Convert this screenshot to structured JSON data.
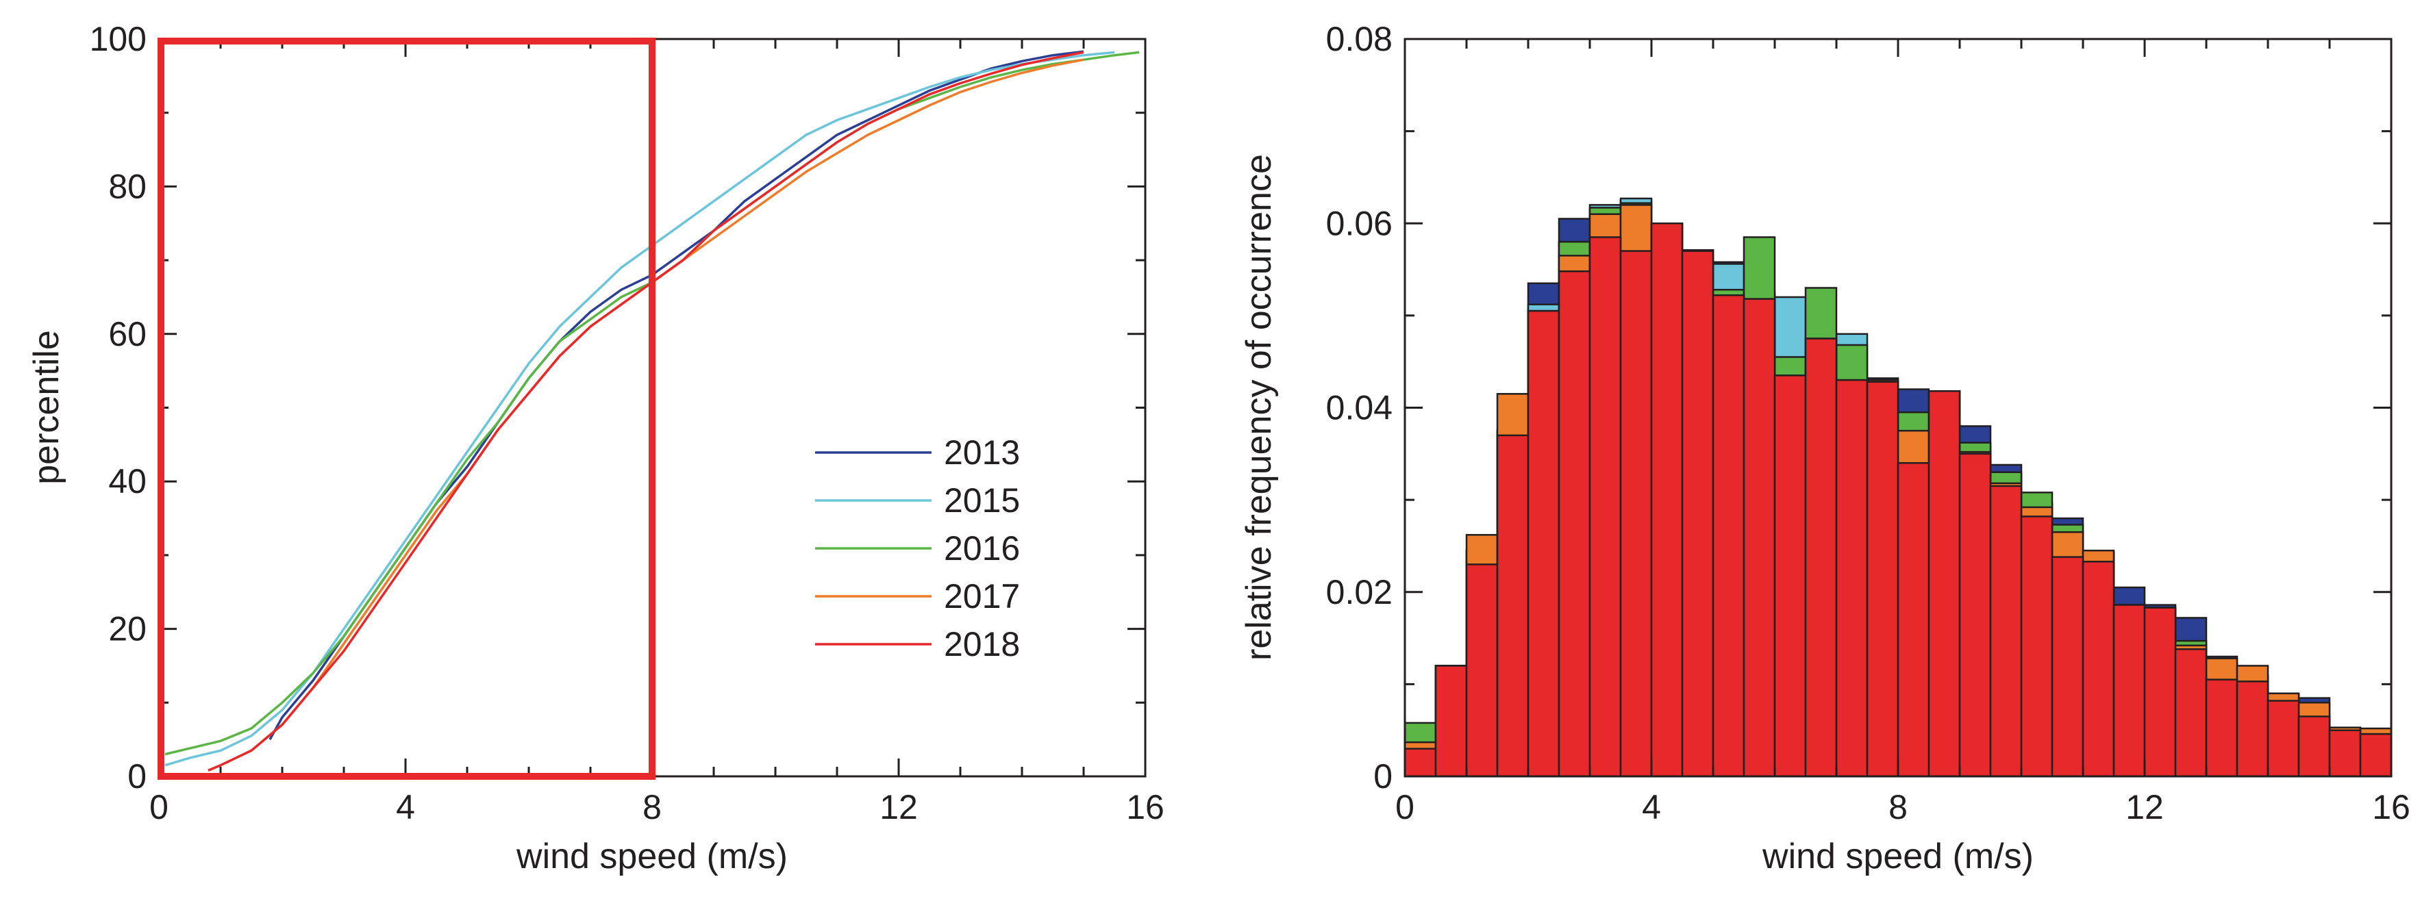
{
  "chart_data": [
    {
      "type": "line",
      "title": "",
      "xlabel": "wind speed (m/s)",
      "ylabel": "percentile",
      "xlim": [
        0,
        16
      ],
      "ylim": [
        0,
        100
      ],
      "xticks": [
        "0",
        "4",
        "8",
        "12",
        "16"
      ],
      "yticks": [
        "0",
        "20",
        "40",
        "60",
        "80",
        "100"
      ],
      "grid": false,
      "legend_position": "lower-right",
      "highlight_box": {
        "x": [
          0,
          8
        ],
        "y": [
          0,
          100
        ],
        "color": "#e8292b"
      },
      "series": [
        {
          "name": "2013",
          "color": "#2b3f94",
          "x": [
            1.8,
            2.0,
            2.5,
            3.0,
            3.5,
            4.0,
            4.5,
            5.0,
            5.5,
            6.0,
            6.5,
            7.0,
            7.5,
            8.0,
            8.5,
            9.0,
            9.5,
            10.0,
            10.5,
            11.0,
            11.5,
            12.0,
            12.5,
            13.0,
            13.5,
            14.0,
            14.5,
            15.0
          ],
          "y": [
            5,
            8,
            13,
            19,
            25,
            31,
            37,
            42,
            48,
            54,
            59,
            63,
            66,
            68,
            71,
            74,
            78,
            81,
            84,
            87,
            89,
            91,
            93,
            94.5,
            96,
            97,
            97.8,
            98.3
          ]
        },
        {
          "name": "2015",
          "color": "#6cc5db",
          "x": [
            0.1,
            0.5,
            1.0,
            1.5,
            2.0,
            2.5,
            3.0,
            3.5,
            4.0,
            4.5,
            5.0,
            5.5,
            6.0,
            6.5,
            7.0,
            7.5,
            8.0,
            8.5,
            9.0,
            9.5,
            10.0,
            10.5,
            11.0,
            11.5,
            12.0,
            12.5,
            13.0,
            13.5,
            14.0,
            14.5,
            15.0,
            15.5
          ],
          "y": [
            1.5,
            2.5,
            3.5,
            5.5,
            9,
            14,
            20,
            26,
            32,
            38,
            44,
            50,
            56,
            61,
            65,
            69,
            72,
            75,
            78,
            81,
            84,
            87,
            89,
            90.5,
            92,
            93.5,
            94.8,
            95.8,
            96.6,
            97.2,
            97.8,
            98.2
          ]
        },
        {
          "name": "2016",
          "color": "#5bb646",
          "x": [
            0.1,
            0.5,
            1.0,
            1.5,
            2.0,
            2.5,
            3.0,
            3.5,
            4.0,
            4.5,
            5.0,
            5.5,
            6.0,
            6.5,
            7.0,
            7.5,
            8.0,
            8.5,
            9.0,
            9.5,
            10.0,
            10.5,
            11.0,
            11.5,
            12.0,
            12.5,
            13.0,
            13.5,
            14.0,
            14.5,
            15.0,
            15.5,
            15.9
          ],
          "y": [
            3,
            3.8,
            4.8,
            6.5,
            10,
            14,
            19,
            25,
            31,
            37,
            43,
            48,
            54,
            59,
            62,
            65,
            67,
            70,
            74,
            77,
            80,
            83,
            86,
            88.5,
            90.5,
            92,
            93.5,
            94.8,
            95.8,
            96.6,
            97.2,
            97.8,
            98.2
          ]
        },
        {
          "name": "2017",
          "color": "#ee7d2b",
          "x": [
            0.8,
            1.0,
            1.5,
            2.0,
            2.5,
            3.0,
            3.5,
            4.0,
            4.5,
            5.0,
            5.5,
            6.0,
            6.5,
            7.0,
            7.5,
            8.0,
            8.5,
            9.0,
            9.5,
            10.0,
            10.5,
            11.0,
            11.5,
            12.0,
            12.5,
            13.0,
            13.5,
            14.0,
            14.5,
            15.0
          ],
          "y": [
            0.8,
            1.5,
            3.5,
            7,
            12,
            18,
            24,
            30,
            36,
            41,
            47,
            52,
            57,
            61,
            64,
            67,
            70,
            73,
            76,
            79,
            82,
            84.5,
            87,
            89,
            91,
            92.8,
            94.2,
            95.4,
            96.4,
            97.2
          ]
        },
        {
          "name": "2018",
          "color": "#e8292b",
          "x": [
            0.8,
            1.0,
            1.5,
            2.0,
            2.5,
            3.0,
            3.5,
            4.0,
            4.5,
            5.0,
            5.5,
            6.0,
            6.5,
            7.0,
            7.5,
            8.0,
            8.5,
            9.0,
            9.5,
            10.0,
            10.5,
            11.0,
            11.5,
            12.0,
            12.5,
            13.0,
            13.5,
            14.0,
            14.5,
            15.0
          ],
          "y": [
            0.8,
            1.5,
            3.5,
            7,
            12,
            17,
            23,
            29,
            35,
            41,
            47,
            52,
            57,
            61,
            64,
            67,
            70,
            74,
            77,
            80,
            83,
            86,
            88.5,
            90.5,
            92.5,
            94,
            95.3,
            96.5,
            97.4,
            98.2
          ]
        }
      ]
    },
    {
      "type": "bar",
      "subtype": "overlaid-histogram",
      "title": "",
      "xlabel": "wind speed (m/s)",
      "ylabel": "relative frequency of occurrence",
      "xlim": [
        0,
        16
      ],
      "ylim": [
        0,
        0.08
      ],
      "xticks": [
        "0",
        "4",
        "8",
        "12",
        "16"
      ],
      "yticks": [
        "0",
        "0.02",
        "0.04",
        "0.06",
        "0.08"
      ],
      "grid": false,
      "bin_width": 0.5,
      "bin_left_edges": [
        0,
        0.5,
        1,
        1.5,
        2,
        2.5,
        3,
        3.5,
        4,
        4.5,
        5,
        5.5,
        6,
        6.5,
        7,
        7.5,
        8,
        8.5,
        9,
        9.5,
        10,
        10.5,
        11,
        11.5,
        12,
        12.5,
        13,
        13.5,
        14,
        14.5,
        15,
        15.5
      ],
      "series": [
        {
          "name": "",
          "color": "#2b3f94",
          "values": [
            0.0035,
            0.012,
            0.0245,
            0.0375,
            0.0535,
            0.0605,
            0.0615,
            0.0625,
            0.06,
            0.057,
            0.0558,
            0.0525,
            0.0455,
            0.0475,
            0.0435,
            0.0432,
            0.042,
            0.0418,
            0.038,
            0.0338,
            0.0295,
            0.028,
            0.0243,
            0.0205,
            0.0186,
            0.0172,
            0.013,
            0.011,
            0.009,
            0.0085,
            0.0052,
            0.0048
          ]
        },
        {
          "name": "",
          "color": "#6cc5db",
          "values": [
            0.0035,
            0.012,
            0.0245,
            0.0375,
            0.0512,
            0.058,
            0.062,
            0.0627,
            0.0598,
            0.0571,
            0.0556,
            0.0525,
            0.052,
            0.0462,
            0.048,
            0.043,
            0.0385,
            0.0418,
            0.0358,
            0.033,
            0.0297,
            0.0265,
            0.0243,
            0.0186,
            0.0183,
            0.0145,
            0.0123,
            0.0108,
            0.0088,
            0.0067,
            0.0052,
            0.0048
          ]
        },
        {
          "name": "",
          "color": "#5bb646",
          "values": [
            0.0058,
            0.012,
            0.0245,
            0.0375,
            0.0505,
            0.058,
            0.0617,
            0.0622,
            0.06,
            0.057,
            0.0528,
            0.0585,
            0.0455,
            0.053,
            0.0468,
            0.043,
            0.0395,
            0.0418,
            0.0362,
            0.033,
            0.0308,
            0.0273,
            0.0243,
            0.0186,
            0.0183,
            0.0147,
            0.012,
            0.0108,
            0.0085,
            0.0067,
            0.0052,
            0.0048
          ]
        },
        {
          "name": "",
          "color": "#ee7d2b",
          "values": [
            0.0037,
            0.012,
            0.0262,
            0.0415,
            0.0505,
            0.0565,
            0.061,
            0.062,
            0.0598,
            0.0571,
            0.0522,
            0.0518,
            0.0435,
            0.0475,
            0.043,
            0.043,
            0.0375,
            0.0418,
            0.0352,
            0.0318,
            0.0292,
            0.0265,
            0.0245,
            0.0186,
            0.0183,
            0.0142,
            0.0128,
            0.012,
            0.009,
            0.008,
            0.0053,
            0.0052
          ]
        },
        {
          "name": "",
          "color": "#e8292b",
          "values": [
            0.003,
            0.012,
            0.023,
            0.037,
            0.0505,
            0.0548,
            0.0585,
            0.057,
            0.06,
            0.057,
            0.0522,
            0.0518,
            0.0435,
            0.0475,
            0.043,
            0.0428,
            0.034,
            0.0418,
            0.035,
            0.0315,
            0.0282,
            0.0238,
            0.0233,
            0.0186,
            0.0183,
            0.0138,
            0.0105,
            0.0103,
            0.0082,
            0.0065,
            0.005,
            0.0046
          ]
        }
      ]
    }
  ]
}
